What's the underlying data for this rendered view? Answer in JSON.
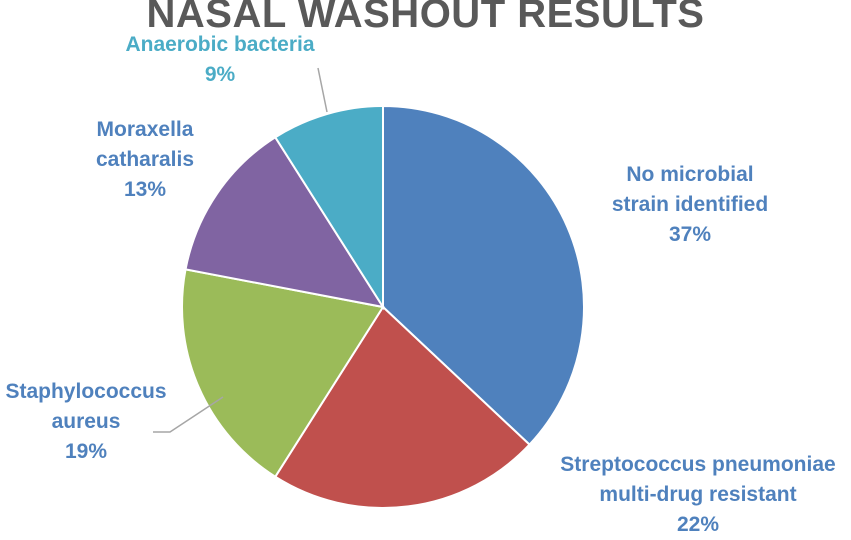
{
  "chart_data": {
    "type": "pie",
    "title": "NASAL WASHOUT RESULTS",
    "slices": [
      {
        "lines": [
          "No microbial",
          "strain identified"
        ],
        "pct": "37%",
        "value": 37,
        "color": "#4f81bd",
        "label_color": "#4f81bd"
      },
      {
        "lines": [
          "Streptococcus pneumoniae",
          "multi-drug resistant"
        ],
        "pct": "22%",
        "value": 22,
        "color": "#c0504d",
        "label_color": "#4f81bd"
      },
      {
        "lines": [
          "Staphylococcus",
          "aureus"
        ],
        "pct": "19%",
        "value": 19,
        "color": "#9bbb59",
        "label_color": "#4f81bd"
      },
      {
        "lines": [
          "Moraxella",
          "catharalis"
        ],
        "pct": "13%",
        "value": 13,
        "color": "#8064a2",
        "label_color": "#4f81bd"
      },
      {
        "lines": [
          "Anaerobic bacteria"
        ],
        "pct": "9%",
        "value": 9,
        "color": "#4bacc6",
        "label_color": "#4bacc6"
      }
    ]
  }
}
